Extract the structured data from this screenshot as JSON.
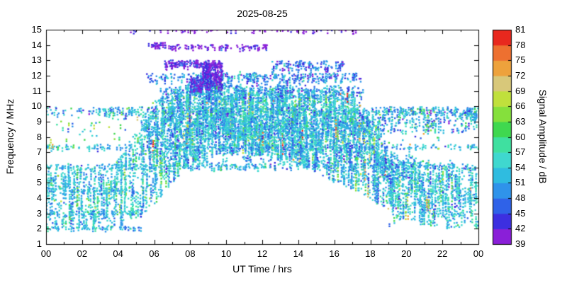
{
  "chart_data": {
    "type": "scatter",
    "title": "2025-08-25",
    "xlabel": "UT Time / hrs",
    "ylabel": "Frequency / MHz",
    "xlim": [
      0,
      24
    ],
    "ylim": [
      1,
      15
    ],
    "grid": false,
    "x_ticks": {
      "values": [
        0,
        2,
        4,
        6,
        8,
        10,
        12,
        14,
        16,
        18,
        20,
        22,
        24
      ],
      "labels": [
        "00",
        "02",
        "04",
        "06",
        "08",
        "10",
        "12",
        "14",
        "16",
        "18",
        "20",
        "22",
        "00"
      ]
    },
    "y_ticks": {
      "values": [
        1,
        2,
        3,
        4,
        5,
        6,
        7,
        8,
        9,
        10,
        11,
        12,
        13,
        14,
        15
      ],
      "labels": [
        "1",
        "2",
        "3",
        "4",
        "5",
        "6",
        "7",
        "8",
        "9",
        "10",
        "11",
        "12",
        "13",
        "14",
        "15"
      ]
    },
    "colorbar": {
      "label": "Signal Amplitude / dB",
      "min": 39,
      "max": 81,
      "step": 3,
      "tick_values": [
        39,
        42,
        45,
        48,
        51,
        54,
        57,
        60,
        63,
        66,
        69,
        72,
        75,
        78,
        81
      ],
      "tick_labels": [
        "39",
        "42",
        "45",
        "48",
        "51",
        "54",
        "57",
        "60",
        "63",
        "66",
        "69",
        "72",
        "75",
        "78",
        "81"
      ],
      "colors": [
        "#8a1fd8",
        "#3c2fe0",
        "#2f62e8",
        "#2f93ea",
        "#2fbce0",
        "#3fd8cf",
        "#3fe0a0",
        "#3fd84f",
        "#85e03c",
        "#c0e03c",
        "#d8c87a",
        "#eda23c",
        "#ed7030",
        "#e8281e"
      ]
    },
    "description": "HF signal-amplitude spectrogram for 2025-08-25: dense cyan/blue scatter forming a diurnal envelope (2-6 MHz at night, 6.5-12.5 MHz from 06-18 UT), persistent broadcast bands near 6, 7.3, 9.5-9.9, 11.6-12.1, 13.8 and 15 MHz, purple (weak) traces at the highest frequencies, sparse green/orange/red (strong) points scattered throughout.",
    "generation": {
      "seed": 20250825,
      "point_size": 2.4,
      "streak_prob": 0.32,
      "streak_min_len": 3,
      "streak_max_len": 7,
      "streak_step": 0.17,
      "diffuse": {
        "fmax": [
          6.2,
          6.2,
          6.0,
          6.0,
          6.5,
          8.5,
          10.6,
          11.0,
          11.6,
          12.4,
          11.6,
          11.2,
          11.0,
          11.4,
          11.2,
          11.0,
          11.4,
          11.0,
          9.0,
          7.0,
          6.6,
          6.6,
          6.2,
          6.0,
          5.8
        ],
        "fmin": [
          2.0,
          2.0,
          2.0,
          2.0,
          2.1,
          2.6,
          3.5,
          5.0,
          6.2,
          6.6,
          6.8,
          6.8,
          6.8,
          6.6,
          6.2,
          5.6,
          5.0,
          4.6,
          4.0,
          3.0,
          2.6,
          2.2,
          2.0,
          2.0,
          2.0
        ],
        "density": [
          85,
          85,
          85,
          80,
          90,
          120,
          170,
          190,
          200,
          210,
          200,
          190,
          190,
          195,
          190,
          185,
          185,
          165,
          125,
          85,
          95,
          95,
          80,
          70
        ],
        "top_bias": 0.75
      },
      "amp_mix": [
        {
          "p": 0.52,
          "min": 51,
          "max": 57
        },
        {
          "p": 0.26,
          "min": 45,
          "max": 51
        },
        {
          "p": 0.14,
          "min": 54,
          "max": 60
        },
        {
          "p": 0.05,
          "min": 60,
          "max": 66
        },
        {
          "p": 0.026,
          "min": 66,
          "max": 75
        },
        {
          "p": 0.004,
          "min": 76,
          "max": 81
        }
      ],
      "bands_key": [
        "f1",
        "f2",
        "h1",
        "h2",
        "count",
        "amp_mean",
        "amp_sd"
      ],
      "bands": [
        [
          5.9,
          6.25,
          0,
          24,
          260,
          52,
          4
        ],
        [
          7.2,
          7.5,
          0,
          24,
          230,
          52,
          4
        ],
        [
          9.4,
          9.95,
          0,
          24,
          430,
          52,
          5
        ],
        [
          8.0,
          9.35,
          5.3,
          18.6,
          650,
          52,
          4
        ],
        [
          6.1,
          7.9,
          5.8,
          18.2,
          330,
          51,
          4
        ],
        [
          10.5,
          11.35,
          6.3,
          17.6,
          240,
          49,
          4
        ],
        [
          11.6,
          12.15,
          5.6,
          17.5,
          240,
          49,
          4
        ],
        [
          11.2,
          12.8,
          8.7,
          9.8,
          220,
          42,
          2.5
        ],
        [
          11.0,
          12.0,
          8.0,
          8.7,
          80,
          43,
          3
        ],
        [
          12.55,
          13.0,
          6.6,
          9.8,
          130,
          42,
          3
        ],
        [
          12.35,
          12.95,
          12.5,
          16.6,
          110,
          47,
          4
        ],
        [
          13.75,
          14.02,
          5.8,
          12.3,
          95,
          41,
          2.5
        ],
        [
          14.9,
          15.03,
          4.4,
          17.2,
          75,
          40,
          2
        ],
        [
          13.95,
          14.15,
          5.7,
          6.6,
          16,
          41,
          2
        ],
        [
          1.95,
          2.15,
          0,
          5.3,
          55,
          52,
          3
        ],
        [
          2.9,
          3.15,
          0,
          5.6,
          60,
          52,
          3
        ],
        [
          4.4,
          4.65,
          0,
          5,
          45,
          53,
          3
        ],
        [
          7.3,
          9.8,
          0,
          5.4,
          55,
          58,
          8
        ],
        [
          7.0,
          9.8,
          17.5,
          22.2,
          70,
          58,
          9
        ],
        [
          2.3,
          6.5,
          19,
          23,
          160,
          52,
          4
        ],
        [
          8.3,
          9.8,
          18.3,
          23.9,
          200,
          51,
          5
        ],
        [
          5.2,
          7.0,
          18.2,
          20.5,
          90,
          51,
          4
        ],
        [
          9.2,
          9.9,
          23.3,
          24,
          40,
          52,
          4
        ],
        [
          11.3,
          12.3,
          9.8,
          16.4,
          70,
          50,
          4
        ]
      ]
    }
  }
}
